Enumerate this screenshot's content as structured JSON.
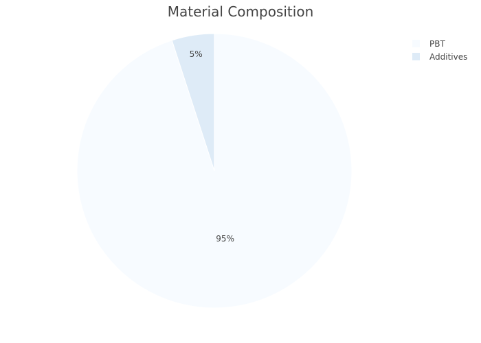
{
  "chart_data": {
    "type": "pie",
    "title": "Material Composition",
    "labels": [
      "PBT",
      "Additives"
    ],
    "values": [
      95,
      5
    ],
    "colors": [
      "#f7fbff",
      "#deebf7"
    ],
    "text_labels": [
      "95%",
      "5%"
    ],
    "legend_position": "top-right",
    "start": "12 o'clock",
    "direction": "clockwise"
  }
}
